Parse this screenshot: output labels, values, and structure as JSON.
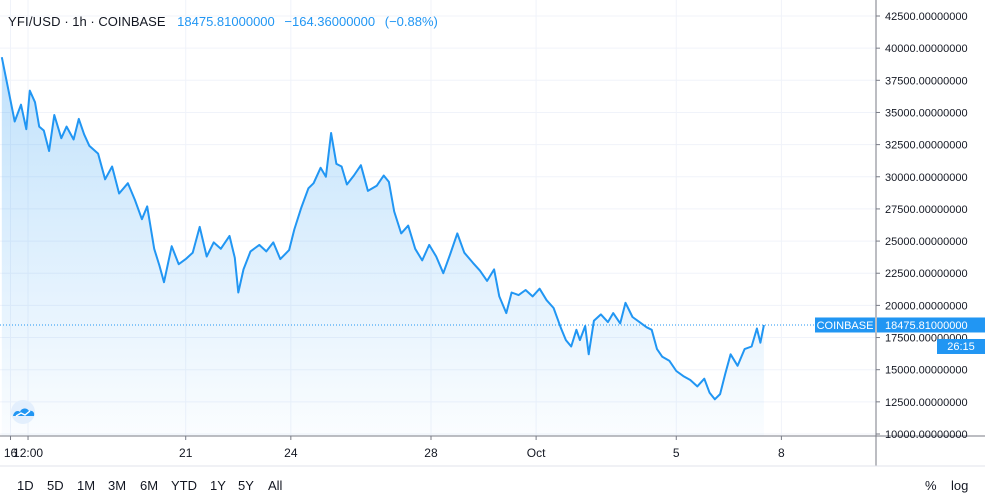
{
  "legend": {
    "symbol": "YFI/USD",
    "interval": "1h",
    "exchange": "COINBASE",
    "sep": "·",
    "last": "18475.81000000",
    "change": "−164.36000000",
    "change_pct": "(−0.88%)"
  },
  "price_tag": {
    "label": "COINBASE",
    "value": "18475.81000000",
    "countdown": "26:15"
  },
  "colors": {
    "line": "#2196f3",
    "accent_tag": "#2196f3",
    "tag_text": "#ffffff"
  },
  "toolbar": {
    "ranges": [
      "1D",
      "5D",
      "1M",
      "3M",
      "6M",
      "YTD",
      "1Y",
      "5Y",
      "All"
    ],
    "percent_label": "%",
    "log_label": "log"
  },
  "logo_icon": "tradingview-cloud-icon",
  "chart_data": {
    "type": "area",
    "title": "YFI/USD · 1h · COINBASE",
    "ylim": [
      10000,
      42500
    ],
    "y_ticks": [
      "10000.00000000",
      "12500.00000000",
      "15000.00000000",
      "17500.00000000",
      "20000.00000000",
      "22500.00000000",
      "25000.00000000",
      "27500.00000000",
      "30000.00000000",
      "32500.00000000",
      "35000.00000000",
      "37500.00000000",
      "40000.00000000",
      "42500.00000000"
    ],
    "x_ticks": [
      {
        "label": "16",
        "t": 0
      },
      {
        "label": "12:00",
        "t": 0.5
      },
      {
        "label": "21",
        "t": 5
      },
      {
        "label": "24",
        "t": 8
      },
      {
        "label": "28",
        "t": 12
      },
      {
        "label": "Oct",
        "t": 15
      },
      {
        "label": "5",
        "t": 19
      },
      {
        "label": "8",
        "t": 22
      }
    ],
    "x_range": [
      -0.3,
      24.7
    ],
    "last_price": 18475.81,
    "grid": true,
    "line": [
      {
        "t": -0.25,
        "v": 39300
      },
      {
        "t": -0.05,
        "v": 36600
      },
      {
        "t": 0.12,
        "v": 34300
      },
      {
        "t": 0.3,
        "v": 35600
      },
      {
        "t": 0.45,
        "v": 33700
      },
      {
        "t": 0.55,
        "v": 36700
      },
      {
        "t": 0.7,
        "v": 35800
      },
      {
        "t": 0.82,
        "v": 33900
      },
      {
        "t": 0.95,
        "v": 33600
      },
      {
        "t": 1.1,
        "v": 32000
      },
      {
        "t": 1.25,
        "v": 34800
      },
      {
        "t": 1.45,
        "v": 33000
      },
      {
        "t": 1.6,
        "v": 33900
      },
      {
        "t": 1.8,
        "v": 32900
      },
      {
        "t": 1.95,
        "v": 34500
      },
      {
        "t": 2.1,
        "v": 33300
      },
      {
        "t": 2.25,
        "v": 32400
      },
      {
        "t": 2.5,
        "v": 31800
      },
      {
        "t": 2.7,
        "v": 29800
      },
      {
        "t": 2.9,
        "v": 30800
      },
      {
        "t": 3.1,
        "v": 28700
      },
      {
        "t": 3.35,
        "v": 29500
      },
      {
        "t": 3.55,
        "v": 28200
      },
      {
        "t": 3.75,
        "v": 26700
      },
      {
        "t": 3.9,
        "v": 27700
      },
      {
        "t": 4.1,
        "v": 24400
      },
      {
        "t": 4.25,
        "v": 23100
      },
      {
        "t": 4.38,
        "v": 21800
      },
      {
        "t": 4.6,
        "v": 24600
      },
      {
        "t": 4.8,
        "v": 23200
      },
      {
        "t": 5.0,
        "v": 23600
      },
      {
        "t": 5.2,
        "v": 24100
      },
      {
        "t": 5.4,
        "v": 26100
      },
      {
        "t": 5.6,
        "v": 23800
      },
      {
        "t": 5.8,
        "v": 24900
      },
      {
        "t": 6.0,
        "v": 24400
      },
      {
        "t": 6.25,
        "v": 25400
      },
      {
        "t": 6.4,
        "v": 23700
      },
      {
        "t": 6.5,
        "v": 21000
      },
      {
        "t": 6.65,
        "v": 22800
      },
      {
        "t": 6.85,
        "v": 24200
      },
      {
        "t": 7.1,
        "v": 24700
      },
      {
        "t": 7.3,
        "v": 24200
      },
      {
        "t": 7.5,
        "v": 24900
      },
      {
        "t": 7.7,
        "v": 23600
      },
      {
        "t": 7.95,
        "v": 24300
      },
      {
        "t": 8.1,
        "v": 25900
      },
      {
        "t": 8.3,
        "v": 27600
      },
      {
        "t": 8.5,
        "v": 29100
      },
      {
        "t": 8.65,
        "v": 29500
      },
      {
        "t": 8.85,
        "v": 30700
      },
      {
        "t": 9.0,
        "v": 30000
      },
      {
        "t": 9.15,
        "v": 33400
      },
      {
        "t": 9.3,
        "v": 31000
      },
      {
        "t": 9.45,
        "v": 30800
      },
      {
        "t": 9.6,
        "v": 29400
      },
      {
        "t": 9.8,
        "v": 30100
      },
      {
        "t": 10.0,
        "v": 30900
      },
      {
        "t": 10.2,
        "v": 28900
      },
      {
        "t": 10.45,
        "v": 29300
      },
      {
        "t": 10.65,
        "v": 30100
      },
      {
        "t": 10.8,
        "v": 29600
      },
      {
        "t": 10.95,
        "v": 27300
      },
      {
        "t": 11.15,
        "v": 25600
      },
      {
        "t": 11.35,
        "v": 26200
      },
      {
        "t": 11.55,
        "v": 24400
      },
      {
        "t": 11.75,
        "v": 23500
      },
      {
        "t": 11.95,
        "v": 24700
      },
      {
        "t": 12.15,
        "v": 23800
      },
      {
        "t": 12.35,
        "v": 22500
      },
      {
        "t": 12.55,
        "v": 24000
      },
      {
        "t": 12.75,
        "v": 25600
      },
      {
        "t": 12.95,
        "v": 24100
      },
      {
        "t": 13.2,
        "v": 23300
      },
      {
        "t": 13.4,
        "v": 22700
      },
      {
        "t": 13.6,
        "v": 21900
      },
      {
        "t": 13.8,
        "v": 22800
      },
      {
        "t": 13.95,
        "v": 20700
      },
      {
        "t": 14.15,
        "v": 19400
      },
      {
        "t": 14.3,
        "v": 21000
      },
      {
        "t": 14.5,
        "v": 20800
      },
      {
        "t": 14.7,
        "v": 21200
      },
      {
        "t": 14.9,
        "v": 20700
      },
      {
        "t": 15.1,
        "v": 21300
      },
      {
        "t": 15.3,
        "v": 20400
      },
      {
        "t": 15.5,
        "v": 19800
      },
      {
        "t": 15.7,
        "v": 18300
      },
      {
        "t": 15.85,
        "v": 17300
      },
      {
        "t": 16.0,
        "v": 16800
      },
      {
        "t": 16.15,
        "v": 18100
      },
      {
        "t": 16.25,
        "v": 17300
      },
      {
        "t": 16.4,
        "v": 18400
      },
      {
        "t": 16.5,
        "v": 16200
      },
      {
        "t": 16.65,
        "v": 18800
      },
      {
        "t": 16.85,
        "v": 19300
      },
      {
        "t": 17.05,
        "v": 18700
      },
      {
        "t": 17.2,
        "v": 19400
      },
      {
        "t": 17.4,
        "v": 18600
      },
      {
        "t": 17.55,
        "v": 20200
      },
      {
        "t": 17.75,
        "v": 19100
      },
      {
        "t": 17.95,
        "v": 18700
      },
      {
        "t": 18.15,
        "v": 18300
      },
      {
        "t": 18.3,
        "v": 18100
      },
      {
        "t": 18.45,
        "v": 16600
      },
      {
        "t": 18.6,
        "v": 16000
      },
      {
        "t": 18.8,
        "v": 15700
      },
      {
        "t": 19.0,
        "v": 14900
      },
      {
        "t": 19.2,
        "v": 14500
      },
      {
        "t": 19.4,
        "v": 14200
      },
      {
        "t": 19.6,
        "v": 13700
      },
      {
        "t": 19.8,
        "v": 14300
      },
      {
        "t": 19.95,
        "v": 13200
      },
      {
        "t": 20.1,
        "v": 12700
      },
      {
        "t": 20.25,
        "v": 13100
      },
      {
        "t": 20.4,
        "v": 14700
      },
      {
        "t": 20.55,
        "v": 16200
      },
      {
        "t": 20.75,
        "v": 15300
      },
      {
        "t": 20.95,
        "v": 16600
      },
      {
        "t": 21.15,
        "v": 16800
      },
      {
        "t": 21.3,
        "v": 18200
      },
      {
        "t": 21.4,
        "v": 17100
      },
      {
        "t": 21.5,
        "v": 18476
      }
    ]
  }
}
